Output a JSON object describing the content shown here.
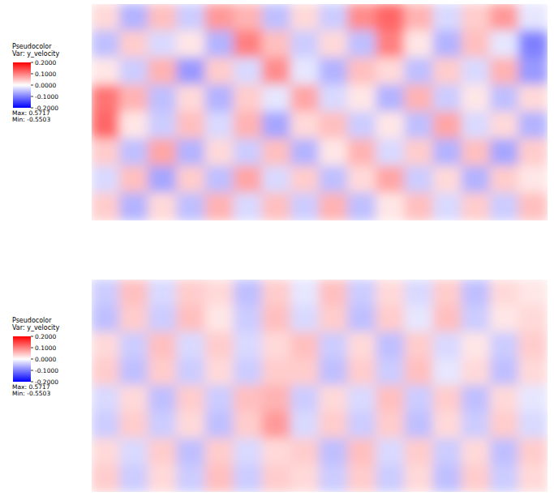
{
  "chart_data": [
    {
      "type": "heatmap",
      "title": "Pseudocolor",
      "subtitle": "Var: y_velocity",
      "cells": [
        [
          0.03,
          -0.06,
          0.05,
          -0.04,
          0.08,
          0.06,
          -0.05,
          0.03,
          -0.04,
          0.09,
          0.12,
          0.06,
          -0.03,
          0.04,
          0.08,
          -0.02
        ],
        [
          -0.05,
          0.04,
          -0.03,
          0.02,
          -0.06,
          0.1,
          0.05,
          -0.04,
          0.03,
          -0.05,
          0.1,
          0.02,
          -0.06,
          0.05,
          -0.02,
          -0.1
        ],
        [
          0.02,
          -0.04,
          0.06,
          -0.08,
          0.04,
          -0.03,
          0.09,
          -0.02,
          -0.06,
          0.05,
          0.03,
          -0.05,
          0.04,
          -0.03,
          0.06,
          -0.08
        ],
        [
          0.11,
          0.06,
          -0.05,
          0.03,
          -0.06,
          0.04,
          -0.02,
          0.07,
          -0.03,
          0.02,
          -0.06,
          0.06,
          -0.04,
          0.02,
          -0.05,
          0.03
        ],
        [
          0.12,
          0.02,
          -0.04,
          0.05,
          -0.03,
          0.06,
          -0.07,
          0.03,
          0.05,
          -0.04,
          0.02,
          -0.05,
          0.07,
          -0.03,
          0.03,
          -0.06
        ],
        [
          0.04,
          -0.05,
          0.07,
          -0.06,
          0.03,
          -0.04,
          0.05,
          -0.06,
          0.02,
          0.06,
          -0.03,
          0.04,
          -0.06,
          0.05,
          -0.07,
          0.04
        ],
        [
          -0.03,
          0.05,
          -0.07,
          0.04,
          -0.05,
          0.07,
          -0.03,
          0.04,
          -0.05,
          0.03,
          0.07,
          -0.04,
          0.03,
          -0.06,
          0.04,
          0.02
        ],
        [
          0.04,
          -0.06,
          0.03,
          -0.05,
          0.06,
          -0.03,
          0.05,
          -0.04,
          0.06,
          -0.05,
          0.02,
          0.05,
          -0.03,
          0.04,
          -0.04,
          0.05
        ]
      ],
      "colorbar": {
        "range": [
          -0.2,
          0.2
        ],
        "ticks": [
          {
            "value": 0.2,
            "label": "0.2000"
          },
          {
            "value": 0.1,
            "label": "0.1000"
          },
          {
            "value": 0,
            "label": "0.0000"
          },
          {
            "value": -0.1,
            "label": "-0.1000"
          },
          {
            "value": -0.2,
            "label": "-0.2000"
          }
        ]
      },
      "max": 0.5717,
      "max_label": "Max: 0.5717",
      "min": -0.5503,
      "min_label": "Min: -0.5503"
    },
    {
      "type": "heatmap",
      "title": "Pseudocolor",
      "subtitle": "Var: y_velocity",
      "cells": [
        [
          -0.04,
          0.05,
          -0.03,
          0.04,
          0.03,
          -0.05,
          0.04,
          -0.02,
          0.05,
          -0.04,
          0.03,
          -0.03,
          0.04,
          -0.05,
          0.03,
          0.02
        ],
        [
          -0.05,
          0.04,
          -0.04,
          0.05,
          0.02,
          -0.04,
          0.05,
          -0.03,
          0.04,
          -0.05,
          0.04,
          -0.02,
          0.05,
          -0.04,
          0.02,
          0.03
        ],
        [
          0.03,
          -0.04,
          0.05,
          -0.03,
          0.04,
          -0.03,
          0.03,
          0.05,
          -0.04,
          0.03,
          -0.05,
          0.04,
          -0.03,
          0.02,
          -0.04,
          0.04
        ],
        [
          0.04,
          -0.05,
          0.04,
          -0.04,
          0.03,
          -0.04,
          0.04,
          0.04,
          -0.05,
          0.04,
          -0.04,
          0.05,
          -0.02,
          0.03,
          -0.05,
          0.03
        ],
        [
          -0.03,
          0.03,
          -0.05,
          0.04,
          -0.04,
          0.05,
          0.06,
          -0.04,
          0.03,
          -0.03,
          0.05,
          -0.04,
          0.04,
          -0.05,
          0.03,
          -0.02
        ],
        [
          -0.04,
          0.04,
          -0.04,
          0.03,
          -0.05,
          0.04,
          0.08,
          -0.03,
          0.04,
          -0.04,
          0.04,
          -0.05,
          0.03,
          -0.04,
          0.04,
          -0.03
        ],
        [
          0.03,
          -0.03,
          0.04,
          -0.05,
          0.04,
          -0.03,
          0.03,
          0.04,
          -0.05,
          0.05,
          -0.03,
          0.04,
          -0.04,
          0.03,
          -0.05,
          0.04
        ],
        [
          0.04,
          -0.04,
          0.03,
          -0.04,
          0.05,
          -0.04,
          0.04,
          0.03,
          -0.04,
          0.04,
          -0.04,
          0.03,
          -0.05,
          0.04,
          -0.04,
          0.03
        ]
      ],
      "colorbar": {
        "range": [
          -0.2,
          0.2
        ],
        "ticks": [
          {
            "value": 0.2,
            "label": "0.2000"
          },
          {
            "value": 0.1,
            "label": "0.1000"
          },
          {
            "value": 0,
            "label": "0.0000"
          },
          {
            "value": -0.1,
            "label": "-0.1000"
          },
          {
            "value": -0.2,
            "label": "-0.2000"
          }
        ]
      },
      "max": 0.5717,
      "max_label": "Max: 0.5717",
      "min": -0.5503,
      "min_label": "Min: -0.5503"
    }
  ]
}
